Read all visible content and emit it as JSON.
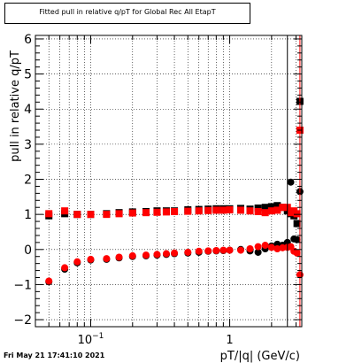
{
  "chart_data": {
    "type": "scatter",
    "title": "Fitted pull in relative q/pT for Global Rec All EtapT",
    "xlabel": "pT/|q| (GeV/c)",
    "ylabel": "pull in relative q/pT",
    "x_scale": "log",
    "xlim": [
      0.04,
      3.3
    ],
    "ylim": [
      -2.2,
      6.1
    ],
    "grid": true,
    "x_tick_labels": [
      {
        "x": 0.1,
        "base": "10",
        "exp": "−1"
      },
      {
        "x": 1,
        "base": "1",
        "exp": ""
      }
    ],
    "y_ticks": [
      -2,
      -1,
      0,
      1,
      2,
      3,
      4,
      5,
      6
    ],
    "series": [
      {
        "color": "#000000",
        "marker": "square",
        "x": [
          0.05,
          0.065,
          0.08,
          0.1,
          0.13,
          0.16,
          0.2,
          0.25,
          0.3,
          0.35,
          0.4,
          0.5,
          0.6,
          0.7,
          0.8,
          0.9,
          1.0,
          1.2,
          1.4,
          1.6,
          1.8,
          2.0,
          2.2,
          2.4,
          2.6,
          2.75,
          2.9,
          3.05,
          3.2
        ],
        "y": [
          0.96,
          1.02,
          1.0,
          1.0,
          1.02,
          1.05,
          1.07,
          1.08,
          1.1,
          1.1,
          1.1,
          1.13,
          1.14,
          1.15,
          1.16,
          1.16,
          1.16,
          1.17,
          1.15,
          1.18,
          1.2,
          1.22,
          1.25,
          1.2,
          1.1,
          1.02,
          0.96,
          0.74,
          4.22
        ]
      },
      {
        "color": "#000000",
        "marker": "circle",
        "x": [
          0.05,
          0.065,
          0.08,
          0.1,
          0.13,
          0.16,
          0.2,
          0.25,
          0.3,
          0.35,
          0.4,
          0.5,
          0.6,
          0.7,
          0.8,
          0.9,
          1.0,
          1.2,
          1.4,
          1.6,
          1.8,
          2.0,
          2.2,
          2.4,
          2.6,
          2.75,
          2.9,
          3.05,
          3.2
        ],
        "y": [
          -0.92,
          -0.56,
          -0.38,
          -0.3,
          -0.28,
          -0.24,
          -0.2,
          -0.18,
          -0.16,
          -0.14,
          -0.12,
          -0.1,
          -0.08,
          -0.05,
          -0.04,
          -0.03,
          -0.02,
          0.0,
          -0.04,
          -0.08,
          0.02,
          0.1,
          0.15,
          0.12,
          0.2,
          1.92,
          0.3,
          0.28,
          1.65
        ]
      },
      {
        "color": "#ff0000",
        "marker": "square",
        "x": [
          0.05,
          0.065,
          0.08,
          0.1,
          0.13,
          0.16,
          0.2,
          0.25,
          0.3,
          0.35,
          0.4,
          0.5,
          0.6,
          0.7,
          0.8,
          0.9,
          1.0,
          1.2,
          1.4,
          1.6,
          1.8,
          2.0,
          2.2,
          2.4,
          2.6,
          2.75,
          2.9,
          3.05,
          3.2
        ],
        "y": [
          1.02,
          1.1,
          1.0,
          1.0,
          1.0,
          1.02,
          1.04,
          1.05,
          1.06,
          1.07,
          1.08,
          1.09,
          1.1,
          1.11,
          1.12,
          1.12,
          1.13,
          1.12,
          1.1,
          1.08,
          1.05,
          1.1,
          1.12,
          1.2,
          1.2,
          1.05,
          1.1,
          1.02,
          3.4
        ]
      },
      {
        "color": "#ff0000",
        "marker": "circle",
        "x": [
          0.05,
          0.065,
          0.08,
          0.1,
          0.13,
          0.16,
          0.2,
          0.25,
          0.3,
          0.35,
          0.4,
          0.5,
          0.6,
          0.7,
          0.8,
          0.9,
          1.0,
          1.2,
          1.4,
          1.6,
          1.8,
          2.0,
          2.2,
          2.4,
          2.6,
          2.75,
          2.9,
          3.05,
          3.2
        ],
        "y": [
          -0.9,
          -0.52,
          -0.35,
          -0.28,
          -0.26,
          -0.22,
          -0.18,
          -0.16,
          -0.14,
          -0.12,
          -0.1,
          -0.08,
          -0.05,
          -0.04,
          -0.03,
          -0.02,
          -0.02,
          -0.02,
          0.02,
          0.08,
          0.12,
          0.06,
          0.02,
          0.05,
          0.06,
          0.08,
          -0.05,
          -0.1,
          -0.72
        ]
      }
    ]
  },
  "datestamp": "Fri May 21 17:41:10 2021"
}
